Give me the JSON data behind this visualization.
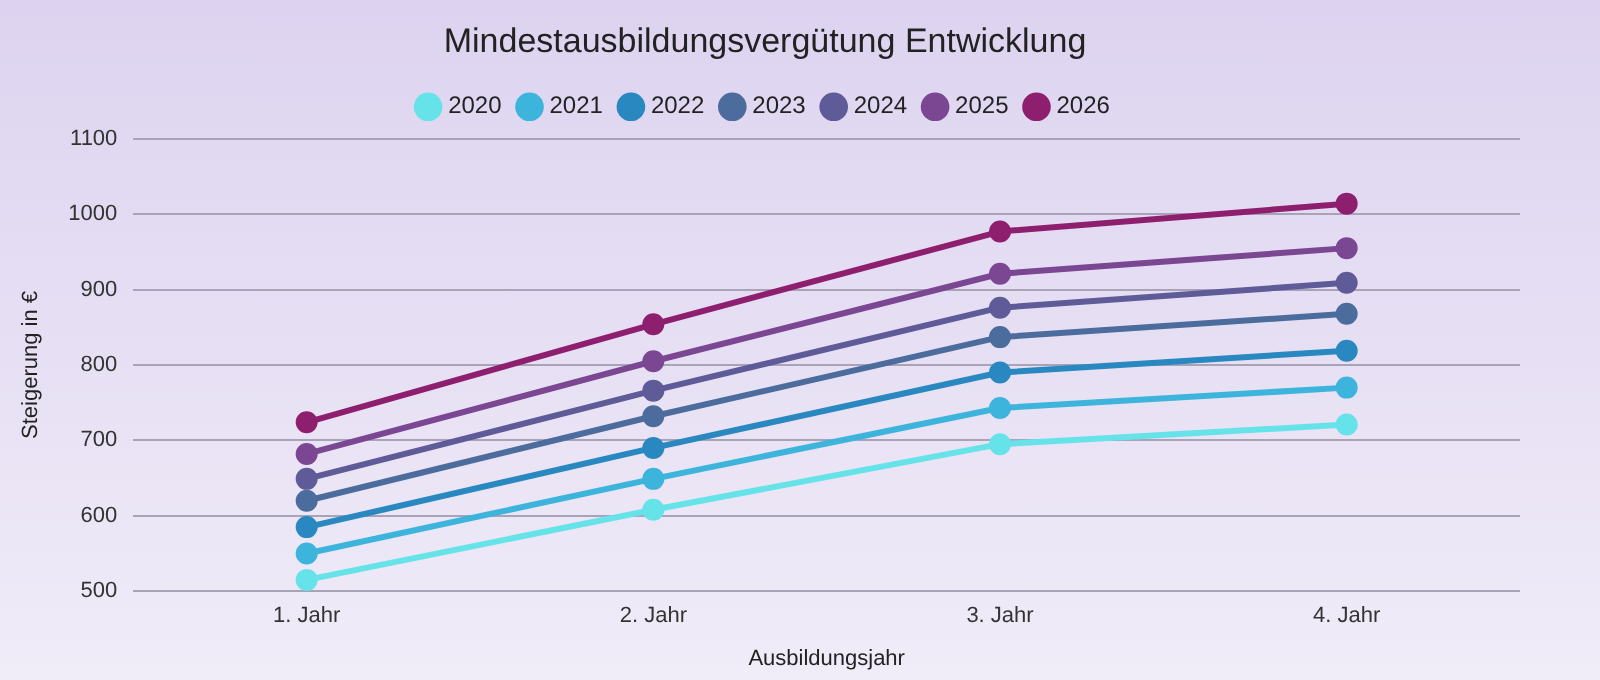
{
  "chart_data": {
    "type": "line",
    "title": "Mindestausbildungsvergütung Entwicklung",
    "xlabel": "Ausbildungsjahr",
    "ylabel": "Steigerung in €",
    "categories": [
      "1. Jahr",
      "2. Jahr",
      "3. Jahr",
      "4. Jahr"
    ],
    "series": [
      {
        "name": "2020",
        "color": "#66e3e8",
        "values": [
          515,
          608,
          695,
          721
        ]
      },
      {
        "name": "2021",
        "color": "#3db4dc",
        "values": [
          550,
          649,
          743,
          770
        ]
      },
      {
        "name": "2022",
        "color": "#2a88c0",
        "values": [
          585,
          690,
          790,
          819
        ]
      },
      {
        "name": "2023",
        "color": "#4b6c9c",
        "values": [
          620,
          732,
          837,
          868
        ]
      },
      {
        "name": "2024",
        "color": "#5f5a98",
        "values": [
          649,
          766,
          876,
          909
        ]
      },
      {
        "name": "2025",
        "color": "#7b4692",
        "values": [
          682,
          805,
          921,
          955
        ]
      },
      {
        "name": "2026",
        "color": "#8e1f6f",
        "values": [
          724,
          854,
          977,
          1014
        ]
      }
    ],
    "ylim": [
      500,
      1100
    ],
    "yticks": [
      500,
      600,
      700,
      800,
      900,
      1000,
      1100
    ],
    "grid": "y",
    "legend": "top",
    "marker": "circle",
    "line_style": "solid"
  }
}
